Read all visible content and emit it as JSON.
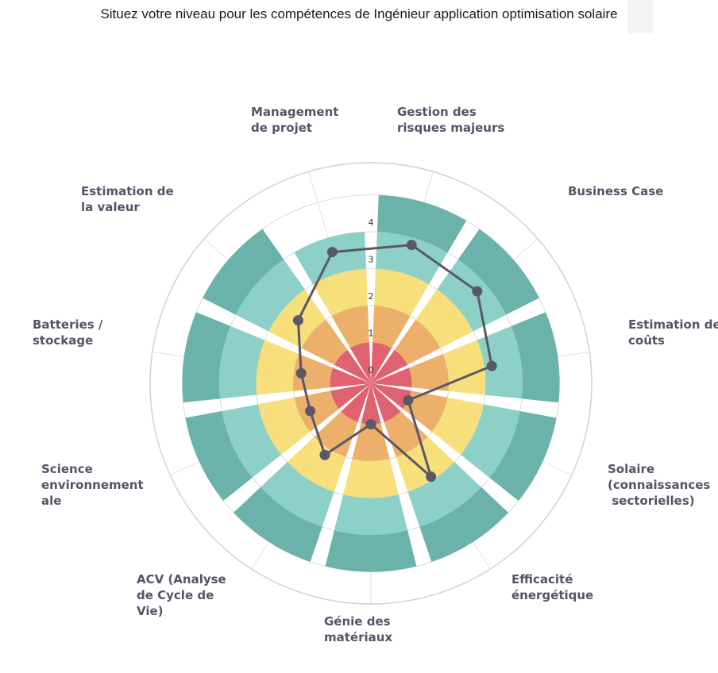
{
  "page": {
    "title": "Situez votre niveau pour les compétences de Ingénieur application optimisation solaire"
  },
  "colors": {
    "level1": "#e0616f",
    "level2": "#ecb06a",
    "level3": "#f7df7c",
    "level4a": "#8dd0c7",
    "level4b": "#6bb3aa",
    "series_line": "#5a5866",
    "grid": "#cfcfd4"
  },
  "chart_data": {
    "type": "polar-area-radar",
    "title": "",
    "categories": [
      {
        "label_lines": [
          "Gestion des",
          "risques majeurs"
        ]
      },
      {
        "label_lines": [
          "Business Case"
        ]
      },
      {
        "label_lines": [
          "Estimation des",
          "coûts"
        ]
      },
      {
        "label_lines": [
          "Solaire",
          "(connaissances",
          " sectorielles)"
        ]
      },
      {
        "label_lines": [
          "Efficacité",
          "énergétique"
        ]
      },
      {
        "label_lines": [
          "Génie des",
          "matériaux"
        ]
      },
      {
        "label_lines": [
          "ACV (Analyse",
          "de Cycle de",
          "Vie)"
        ]
      },
      {
        "label_lines": [
          "Science",
          "environnement",
          "ale"
        ]
      },
      {
        "label_lines": [
          "Batteries /",
          "stockage"
        ]
      },
      {
        "label_lines": [
          "Estimation de",
          "la valeur"
        ]
      },
      {
        "label_lines": [
          "Management",
          "de projet"
        ]
      }
    ],
    "radial_ticks": [
      "0",
      "1",
      "2",
      "3",
      "4"
    ],
    "rlim": [
      0,
      5
    ],
    "required_levels": [
      5,
      5,
      5,
      5,
      5,
      5,
      5,
      5,
      5,
      5,
      4
    ],
    "series": [
      {
        "values": [
          3.8,
          3.7,
          3.2,
          1.0,
          2.9,
          1.0,
          2.2,
          1.7,
          1.8,
          2.5,
          3.6
        ]
      }
    ],
    "grid": true
  }
}
